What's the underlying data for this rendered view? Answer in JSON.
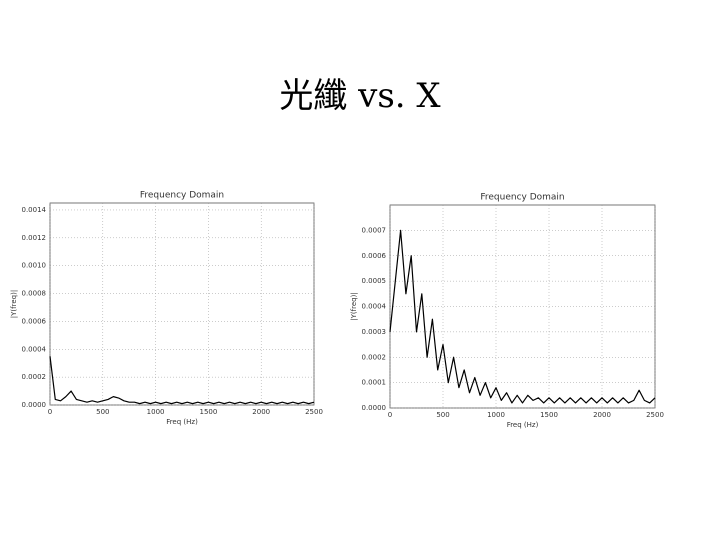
{
  "slide_title": "光纖 vs. X",
  "chart_data": [
    {
      "type": "line",
      "title": "Frequency Domain",
      "x_label": "Freq (Hz)",
      "y_label": "|Y(freq)|",
      "grid": true,
      "x": [
        0,
        50,
        100,
        150,
        200,
        250,
        300,
        350,
        400,
        450,
        500,
        550,
        600,
        650,
        700,
        750,
        800,
        850,
        900,
        950,
        1000,
        1050,
        1100,
        1150,
        1200,
        1250,
        1300,
        1350,
        1400,
        1450,
        1500,
        1550,
        1600,
        1650,
        1700,
        1750,
        1800,
        1850,
        1900,
        1950,
        2000,
        2050,
        2100,
        2150,
        2200,
        2250,
        2300,
        2350,
        2400,
        2450,
        2500
      ],
      "series": [
        {
          "name": "|Y(freq)|",
          "color": "#000000",
          "values": [
            0.00035,
            4e-05,
            3e-05,
            6e-05,
            0.0001,
            4e-05,
            3e-05,
            2e-05,
            3e-05,
            2e-05,
            3e-05,
            4e-05,
            6e-05,
            5e-05,
            3e-05,
            2e-05,
            2e-05,
            1e-05,
            2e-05,
            1e-05,
            2e-05,
            1e-05,
            2e-05,
            1e-05,
            2e-05,
            1e-05,
            2e-05,
            1e-05,
            2e-05,
            1e-05,
            2e-05,
            1e-05,
            2e-05,
            1e-05,
            2e-05,
            1e-05,
            2e-05,
            1e-05,
            2e-05,
            1e-05,
            2e-05,
            1e-05,
            2e-05,
            1e-05,
            2e-05,
            1e-05,
            2e-05,
            1e-05,
            2e-05,
            1e-05,
            2e-05
          ]
        }
      ],
      "xlim": [
        0,
        2500
      ],
      "xticks": [
        0,
        500,
        1000,
        1500,
        2000,
        2500
      ],
      "ylim": [
        0,
        0.00145
      ],
      "yticks": [
        {
          "value": 0,
          "label": "0.0000"
        },
        {
          "value": 0.0002,
          "label": "0.0002"
        },
        {
          "value": 0.0004,
          "label": "0.0004"
        },
        {
          "value": 0.0006,
          "label": "0.0006"
        },
        {
          "value": 0.0008,
          "label": "0.0008"
        },
        {
          "value": 0.001,
          "label": "0.0010"
        },
        {
          "value": 0.0012,
          "label": "0.0012"
        },
        {
          "value": 0.0014,
          "label": "0.0014"
        }
      ]
    },
    {
      "type": "line",
      "title": "Frequency Domain",
      "x_label": "Freq (Hz)",
      "y_label": "|Y(freq)|",
      "grid": true,
      "x": [
        0,
        50,
        100,
        150,
        200,
        250,
        300,
        350,
        400,
        450,
        500,
        550,
        600,
        650,
        700,
        750,
        800,
        850,
        900,
        950,
        1000,
        1050,
        1100,
        1150,
        1200,
        1250,
        1300,
        1350,
        1400,
        1450,
        1500,
        1550,
        1600,
        1650,
        1700,
        1750,
        1800,
        1850,
        1900,
        1950,
        2000,
        2050,
        2100,
        2150,
        2200,
        2250,
        2300,
        2350,
        2400,
        2450,
        2500
      ],
      "series": [
        {
          "name": "|Y(freq)|",
          "color": "#000000",
          "values": [
            0.0003,
            0.0005,
            0.0007,
            0.00045,
            0.0006,
            0.0003,
            0.00045,
            0.0002,
            0.00035,
            0.00015,
            0.00025,
            0.0001,
            0.0002,
            8e-05,
            0.00015,
            6e-05,
            0.00012,
            5e-05,
            0.0001,
            4e-05,
            8e-05,
            3e-05,
            6e-05,
            2e-05,
            5e-05,
            2e-05,
            5e-05,
            3e-05,
            4e-05,
            2e-05,
            4e-05,
            2e-05,
            4e-05,
            2e-05,
            4e-05,
            2e-05,
            4e-05,
            2e-05,
            4e-05,
            2e-05,
            4e-05,
            2e-05,
            4e-05,
            2e-05,
            4e-05,
            2e-05,
            3e-05,
            7e-05,
            3e-05,
            2e-05,
            4e-05
          ]
        }
      ],
      "xlim": [
        0,
        2500
      ],
      "xticks": [
        0,
        500,
        1000,
        1500,
        2000,
        2500
      ],
      "ylim": [
        0,
        0.0008
      ],
      "yticks": [
        {
          "value": 0,
          "label": "0.0000"
        },
        {
          "value": 0.0001,
          "label": "0.0001"
        },
        {
          "value": 0.0002,
          "label": "0.0002"
        },
        {
          "value": 0.0003,
          "label": "0.0003"
        },
        {
          "value": 0.0004,
          "label": "0.0004"
        },
        {
          "value": 0.0005,
          "label": "0.0005"
        },
        {
          "value": 0.0006,
          "label": "0.0006"
        },
        {
          "value": 0.0007,
          "label": "0.0007"
        }
      ]
    }
  ]
}
